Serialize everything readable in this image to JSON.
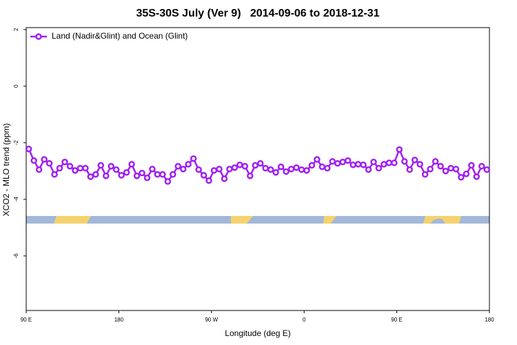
{
  "chart_data": {
    "type": "line",
    "title": "35S-30S July (Ver 9)   2014-09-06 to 2018-12-31",
    "x_label": "Longitude (deg E)",
    "y_label": "XCO2 - MLO trend (ppm)",
    "x": [
      92.5,
      97.5,
      102.5,
      107.5,
      112.5,
      117.5,
      122.5,
      127.5,
      132.5,
      137.5,
      142.5,
      147.5,
      152.5,
      157.5,
      162.5,
      167.5,
      172.5,
      177.5,
      182.5,
      187.5,
      192.5,
      197.5,
      202.5,
      207.5,
      212.5,
      217.5,
      222.5,
      227.5,
      232.5,
      237.5,
      242.5,
      247.5,
      252.5,
      257.5,
      262.5,
      267.5,
      272.5,
      277.5,
      282.5,
      287.5,
      292.5,
      297.5,
      302.5,
      307.5,
      312.5,
      317.5,
      322.5,
      327.5,
      332.5,
      337.5,
      342.5,
      347.5,
      352.5,
      357.5,
      362.5,
      367.5,
      372.5,
      377.5,
      382.5,
      387.5,
      392.5,
      397.5,
      402.5,
      407.5,
      412.5,
      417.5,
      422.5,
      427.5,
      432.5,
      437.5,
      442.5,
      447.5,
      452.5,
      457.5,
      462.5,
      467.5,
      472.5,
      477.5,
      482.5,
      487.5,
      492.5,
      497.5,
      502.5,
      507.5,
      512.5,
      517.5,
      522.5,
      527.5,
      532.5,
      537.5
    ],
    "series": [
      {
        "name": "Land (Nadir&Glint) and Ocean (Glint)",
        "color": "#a020f0",
        "values": [
          -2.22,
          -2.63,
          -2.95,
          -2.59,
          -2.73,
          -3.12,
          -2.9,
          -2.68,
          -2.83,
          -2.98,
          -2.9,
          -2.9,
          -3.2,
          -3.12,
          -2.8,
          -3.17,
          -2.83,
          -2.95,
          -3.15,
          -3.05,
          -2.76,
          -3.17,
          -3.07,
          -3.24,
          -2.93,
          -3.12,
          -3.12,
          -3.37,
          -3.12,
          -2.83,
          -2.93,
          -2.76,
          -2.56,
          -2.95,
          -3.15,
          -3.34,
          -2.98,
          -2.93,
          -3.27,
          -2.93,
          -2.88,
          -2.78,
          -2.83,
          -3.17,
          -2.8,
          -2.73,
          -2.9,
          -2.95,
          -3.05,
          -2.85,
          -3.02,
          -2.93,
          -2.88,
          -2.95,
          -2.98,
          -2.8,
          -2.59,
          -2.85,
          -2.9,
          -2.66,
          -2.73,
          -2.68,
          -2.63,
          -2.78,
          -2.76,
          -2.78,
          -2.95,
          -2.68,
          -2.9,
          -2.76,
          -2.71,
          -2.71,
          -2.24,
          -2.66,
          -2.95,
          -2.61,
          -2.76,
          -3.12,
          -2.93,
          -2.66,
          -2.83,
          -3.0,
          -2.9,
          -2.93,
          -3.22,
          -3.1,
          -2.8,
          -3.2,
          -2.83,
          -2.95
        ]
      }
    ],
    "xlim": [
      90,
      540
    ],
    "ylim": [
      -7.93,
      2.07
    ],
    "xticks": [
      {
        "value": 90,
        "label": "90 E"
      },
      180,
      {
        "value": 270,
        "label": "90 W"
      },
      {
        "value": 360,
        "label": "0"
      },
      {
        "value": 450,
        "label": "90 E"
      },
      {
        "value": 540,
        "label": "180"
      }
    ],
    "yticks": [
      2,
      0,
      -2,
      -4,
      -6
    ],
    "legend": "top-left"
  }
}
